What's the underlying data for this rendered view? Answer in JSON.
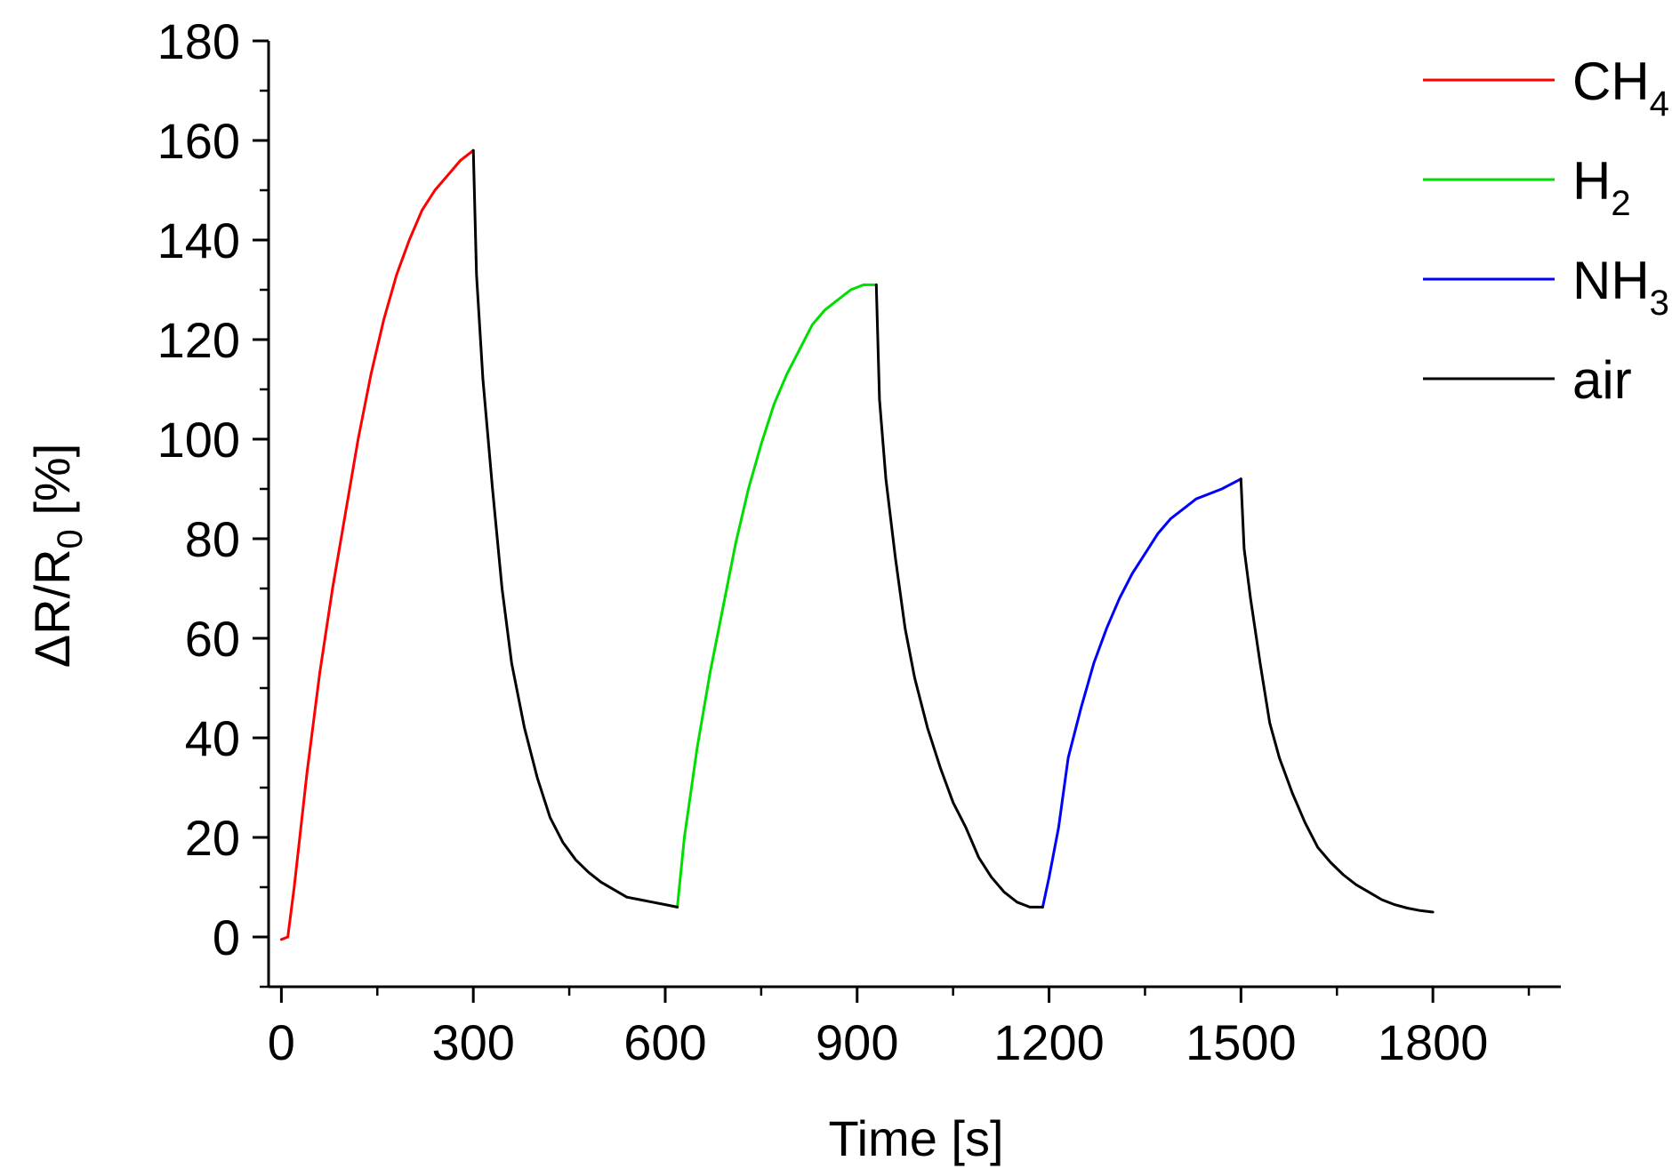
{
  "chart_data": {
    "type": "line",
    "xlabel": "Time [s]",
    "ylabel_parts": {
      "main": "ΔR/R",
      "sub": "0",
      "unit": " [%]"
    },
    "xlim": [
      -20,
      2000
    ],
    "ylim": [
      -10,
      180
    ],
    "x_ticks": [
      0,
      300,
      600,
      900,
      1200,
      1500,
      1800
    ],
    "x_tick_labels": [
      "0",
      "300",
      "600",
      "900",
      "1200",
      "1500",
      "1800"
    ],
    "y_ticks": [
      0,
      20,
      40,
      60,
      80,
      100,
      120,
      140,
      160,
      180
    ],
    "y_tick_labels": [
      "0",
      "20",
      "40",
      "60",
      "80",
      "100",
      "120",
      "140",
      "160",
      "180"
    ],
    "legend_position": "top-right",
    "grid": false,
    "series": [
      {
        "name": "CH4",
        "legend": {
          "main": "CH",
          "sub": "4"
        },
        "color": "#ff0000",
        "segments": [
          [
            [
              0,
              -0.5
            ],
            [
              10,
              0
            ],
            [
              20,
              10
            ],
            [
              40,
              33
            ],
            [
              60,
              53
            ],
            [
              80,
              70
            ],
            [
              100,
              85
            ],
            [
              120,
              100
            ],
            [
              140,
              113
            ],
            [
              160,
              124
            ],
            [
              180,
              133
            ],
            [
              200,
              140
            ],
            [
              220,
              146
            ],
            [
              240,
              150
            ],
            [
              260,
              153
            ],
            [
              280,
              156
            ],
            [
              300,
              158
            ]
          ]
        ]
      },
      {
        "name": "H2",
        "legend": {
          "main": "H",
          "sub": "2"
        },
        "color": "#00dd00",
        "segments": [
          [
            [
              619,
              6
            ],
            [
              630,
              20
            ],
            [
              650,
              38
            ],
            [
              670,
              53
            ],
            [
              690,
              66
            ],
            [
              710,
              79
            ],
            [
              730,
              90
            ],
            [
              750,
              99
            ],
            [
              770,
              107
            ],
            [
              790,
              113
            ],
            [
              810,
              118
            ],
            [
              830,
              123
            ],
            [
              850,
              126
            ],
            [
              870,
              128
            ],
            [
              890,
              130
            ],
            [
              910,
              131
            ],
            [
              930,
              131
            ]
          ]
        ]
      },
      {
        "name": "NH3",
        "legend": {
          "main": "NH",
          "sub": "3"
        },
        "color": "#0000ff",
        "segments": [
          [
            [
              1190,
              6
            ],
            [
              1200,
              12
            ],
            [
              1215,
              22
            ],
            [
              1230,
              36
            ],
            [
              1250,
              46
            ],
            [
              1270,
              55
            ],
            [
              1290,
              62
            ],
            [
              1310,
              68
            ],
            [
              1330,
              73
            ],
            [
              1350,
              77
            ],
            [
              1370,
              81
            ],
            [
              1390,
              84
            ],
            [
              1410,
              86
            ],
            [
              1430,
              88
            ],
            [
              1450,
              89
            ],
            [
              1470,
              90
            ],
            [
              1500,
              92
            ]
          ]
        ]
      },
      {
        "name": "air",
        "legend": {
          "main": "air",
          "sub": ""
        },
        "color": "#000000",
        "segments": [
          [
            [
              300,
              158
            ],
            [
              305,
              133
            ],
            [
              315,
              112
            ],
            [
              330,
              90
            ],
            [
              345,
              70
            ],
            [
              360,
              55
            ],
            [
              380,
              42
            ],
            [
              400,
              32
            ],
            [
              420,
              24
            ],
            [
              440,
              19
            ],
            [
              460,
              15.5
            ],
            [
              480,
              13
            ],
            [
              500,
              11
            ],
            [
              520,
              9.5
            ],
            [
              540,
              8
            ],
            [
              560,
              7.5
            ],
            [
              580,
              7
            ],
            [
              600,
              6.5
            ],
            [
              619,
              6
            ]
          ],
          [
            [
              930,
              131
            ],
            [
              935,
              108
            ],
            [
              945,
              92
            ],
            [
              960,
              76
            ],
            [
              975,
              62
            ],
            [
              990,
              52
            ],
            [
              1010,
              42
            ],
            [
              1030,
              34
            ],
            [
              1050,
              27
            ],
            [
              1070,
              22
            ],
            [
              1090,
              16
            ],
            [
              1110,
              12
            ],
            [
              1130,
              9
            ],
            [
              1150,
              7
            ],
            [
              1170,
              6
            ],
            [
              1190,
              6
            ]
          ],
          [
            [
              1500,
              92
            ],
            [
              1505,
              78
            ],
            [
              1515,
              68
            ],
            [
              1530,
              55
            ],
            [
              1545,
              43
            ],
            [
              1560,
              36
            ],
            [
              1580,
              29
            ],
            [
              1600,
              23
            ],
            [
              1620,
              18
            ],
            [
              1640,
              15
            ],
            [
              1660,
              12.5
            ],
            [
              1680,
              10.5
            ],
            [
              1700,
              9
            ],
            [
              1720,
              7.5
            ],
            [
              1740,
              6.5
            ],
            [
              1760,
              5.8
            ],
            [
              1780,
              5.3
            ],
            [
              1800,
              5
            ]
          ]
        ]
      }
    ]
  }
}
